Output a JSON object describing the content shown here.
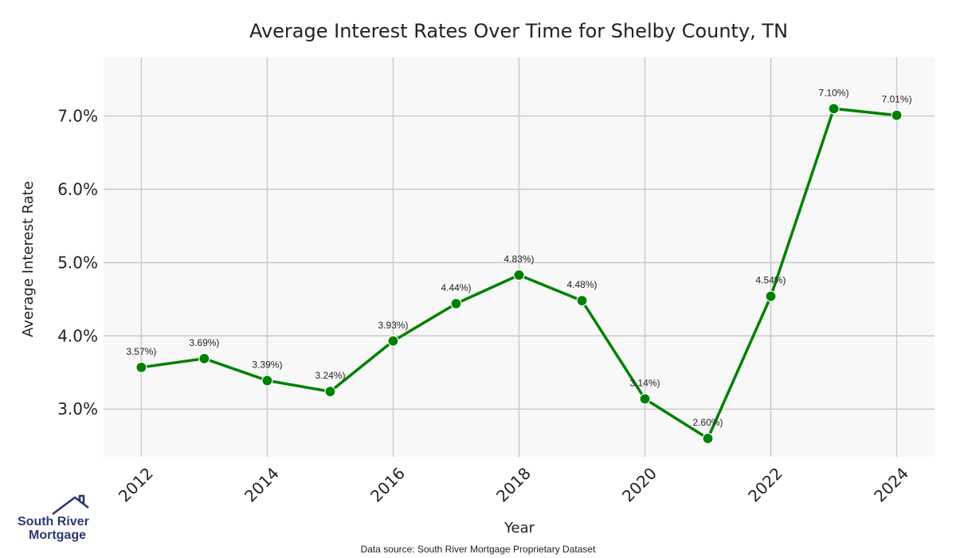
{
  "chart_data": {
    "type": "line",
    "title": "Average Interest Rates Over Time for Shelby County, TN",
    "xlabel": "Year",
    "ylabel": "Average Interest Rate",
    "x": [
      2012,
      2013,
      2014,
      2015,
      2016,
      2017,
      2018,
      2019,
      2020,
      2021,
      2022,
      2023,
      2024
    ],
    "values": [
      3.57,
      3.69,
      3.39,
      3.24,
      3.93,
      4.44,
      4.83,
      4.48,
      3.14,
      2.6,
      4.54,
      7.1,
      7.01
    ],
    "data_labels": [
      "3.57%)",
      "3.69%)",
      "3.39%)",
      "3.24%)",
      "3.93%)",
      "4.44%)",
      "4.83%)",
      "4.48%)",
      "3.14%)",
      "2.60%)",
      "4.54%)",
      "7.10%)",
      "7.01%)"
    ],
    "xticks": [
      "2012",
      "2014",
      "2016",
      "2018",
      "2020",
      "2022",
      "2024"
    ],
    "yticks": [
      "3.0%",
      "4.0%",
      "5.0%",
      "6.0%",
      "7.0%"
    ],
    "ytick_values": [
      3.0,
      4.0,
      5.0,
      6.0,
      7.0
    ],
    "xlim": [
      2011.4,
      2024.6
    ],
    "ylim": [
      2.35,
      7.8
    ],
    "grid": true,
    "line_color": "#008000",
    "background_color": "#f8f8f8",
    "grid_color": "#cccccc"
  },
  "source_note": "Data source: South River Mortgage Proprietary Dataset",
  "logo": {
    "line1": "South River",
    "line2": "Mortgage",
    "color": "#2b3a73"
  }
}
